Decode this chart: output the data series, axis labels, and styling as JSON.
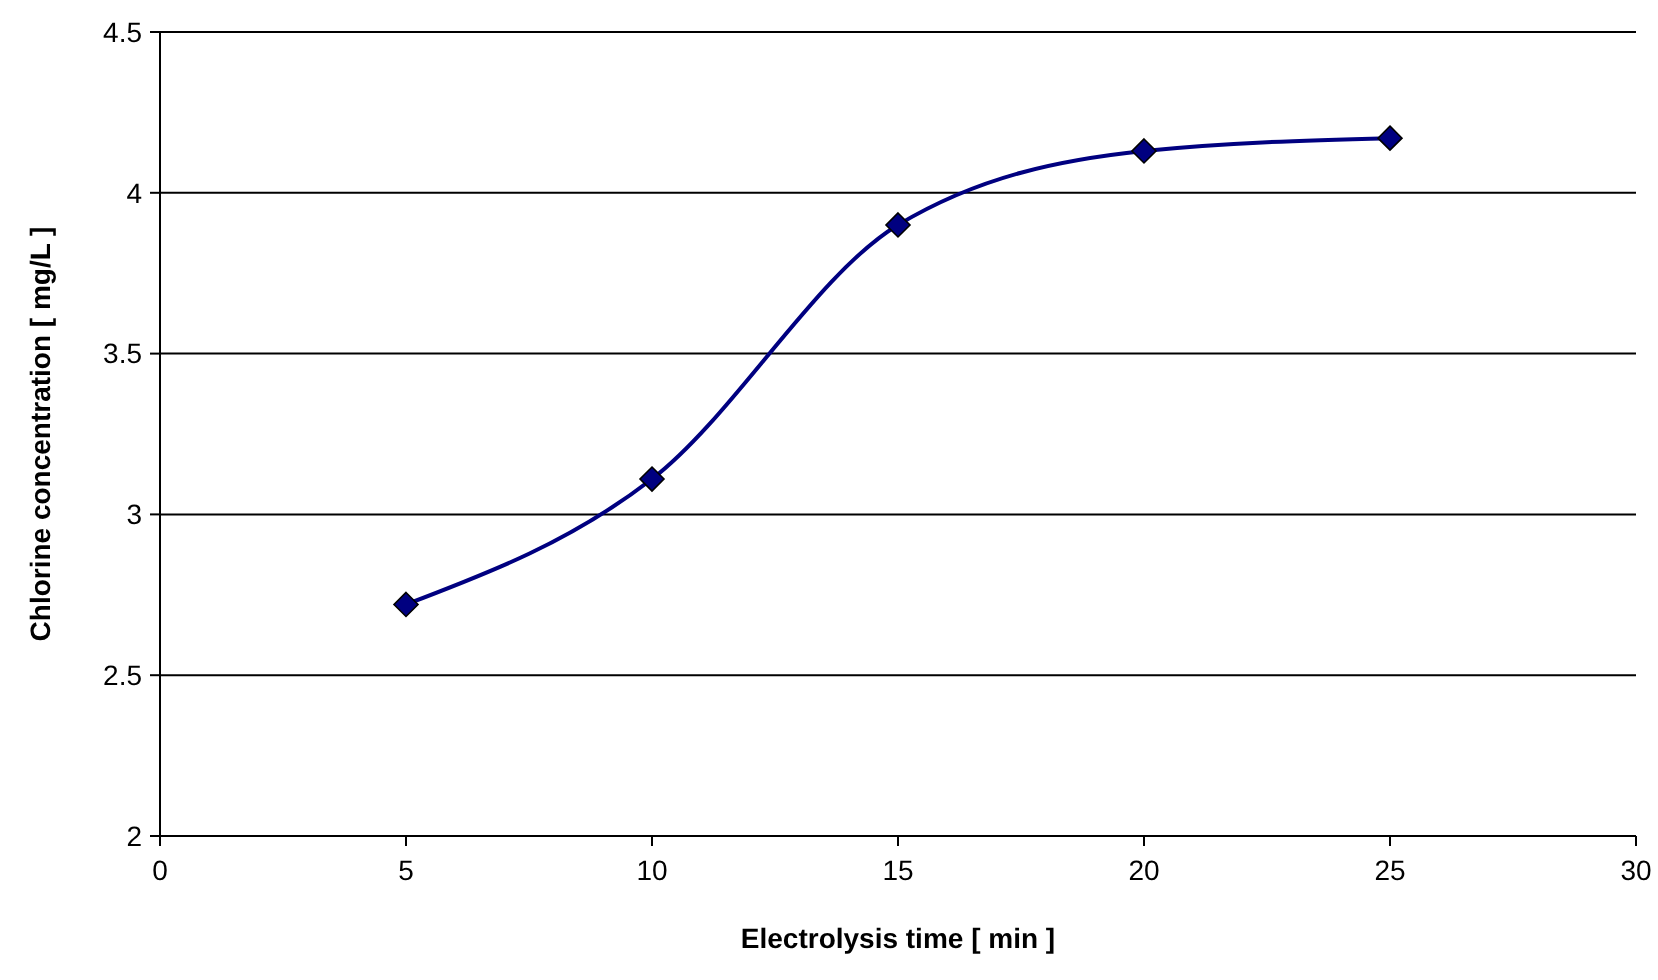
{
  "chart_data": {
    "type": "line",
    "xlabel": "Electrolysis time [ min ]",
    "ylabel": "Chlorine concentration [ mg/L ]",
    "x": [
      5,
      10,
      15,
      20,
      25
    ],
    "series": [
      {
        "color": "#000080",
        "values": [
          2.72,
          3.11,
          3.9,
          4.13,
          4.17
        ]
      }
    ],
    "xlim": [
      0,
      30
    ],
    "xticks": [
      0,
      5,
      10,
      15,
      20,
      25,
      30
    ],
    "ylim": [
      2,
      4.5
    ],
    "yticks": [
      2,
      2.5,
      3,
      3.5,
      4,
      4.5
    ],
    "grid": "y",
    "marker": "diamond",
    "line_style": "solid"
  }
}
